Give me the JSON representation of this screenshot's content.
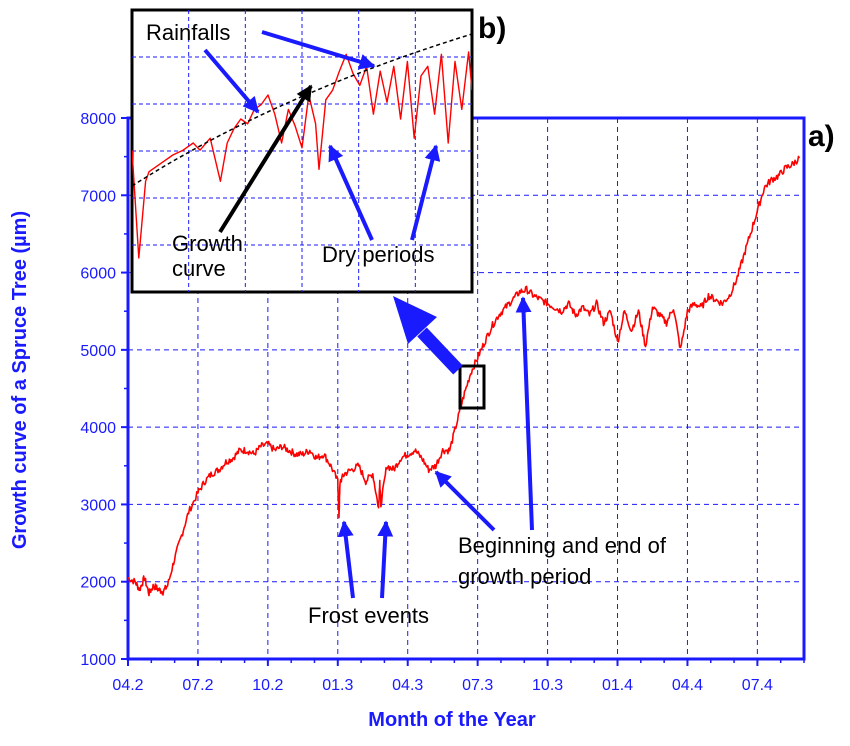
{
  "chart_data": [
    {
      "panel_label": "a)",
      "type": "line",
      "xlabel": "Month of the Year",
      "ylabel": "Growth curve of a Spruce Tree (µm)",
      "x_tick_labels": [
        "04.2",
        "07.2",
        "10.2",
        "01.3",
        "04.3",
        "07.3",
        "10.3",
        "01.4",
        "04.4",
        "07.4"
      ],
      "x_tick_months": [
        0,
        3,
        6,
        9,
        12,
        15,
        18,
        21,
        24,
        27
      ],
      "xlim": [
        0,
        29
      ],
      "yticks": [
        1000,
        2000,
        3000,
        4000,
        5000,
        6000,
        7000,
        8000
      ],
      "ylim": [
        1000,
        8000
      ],
      "grid": true,
      "series_color": "#ff0000",
      "series": [
        {
          "x": [
            0.0,
            0.3,
            0.5,
            0.7,
            0.9,
            1.1,
            1.3,
            1.5,
            1.7,
            2.0,
            2.3,
            2.6,
            3.0,
            3.3,
            3.6,
            3.9,
            4.2,
            4.5,
            4.8,
            5.1,
            5.4,
            5.7,
            6.0,
            6.3,
            6.6,
            6.9,
            7.2,
            7.5,
            7.8,
            8.1,
            8.4,
            8.7,
            9.0,
            9.05,
            9.1,
            9.3,
            9.6,
            9.9,
            10.2,
            10.5,
            10.75,
            10.8,
            10.85,
            11.1,
            11.4,
            11.7,
            12.0,
            12.3,
            12.6,
            12.9,
            13.2,
            13.5,
            13.8,
            14.1,
            14.4,
            14.7,
            15.0,
            15.3,
            15.6,
            15.9,
            16.2,
            16.5,
            16.8,
            17.1,
            17.4,
            17.7,
            18.0,
            18.3,
            18.6,
            18.9,
            19.2,
            19.5,
            19.8,
            20.1,
            20.4,
            20.7,
            21.0,
            21.3,
            21.6,
            21.9,
            22.2,
            22.5,
            22.8,
            23.1,
            23.4,
            23.7,
            24.0,
            24.3,
            24.6,
            24.9,
            25.2,
            25.5,
            25.8,
            26.1,
            26.4,
            26.7,
            27.0,
            27.3,
            27.6,
            27.9,
            28.2,
            28.5,
            28.8
          ],
          "y": [
            2050,
            2000,
            1900,
            2050,
            1850,
            1950,
            1900,
            1870,
            1950,
            2300,
            2600,
            2900,
            3150,
            3300,
            3400,
            3450,
            3550,
            3600,
            3700,
            3700,
            3650,
            3750,
            3780,
            3700,
            3750,
            3700,
            3650,
            3650,
            3700,
            3600,
            3650,
            3500,
            3300,
            2850,
            3300,
            3400,
            3450,
            3500,
            3300,
            3400,
            2950,
            3300,
            3000,
            3500,
            3450,
            3600,
            3650,
            3700,
            3600,
            3450,
            3500,
            3700,
            3700,
            4050,
            4400,
            4700,
            4900,
            5100,
            5300,
            5450,
            5550,
            5650,
            5750,
            5780,
            5700,
            5650,
            5600,
            5550,
            5500,
            5600,
            5450,
            5550,
            5450,
            5600,
            5350,
            5500,
            5100,
            5500,
            5250,
            5500,
            5050,
            5550,
            5450,
            5350,
            5550,
            5000,
            5500,
            5600,
            5550,
            5700,
            5650,
            5600,
            5700,
            5900,
            6200,
            6500,
            6800,
            7100,
            7200,
            7250,
            7350,
            7400,
            7480
          ]
        }
      ],
      "annotations": [
        "Frost events",
        "Beginning and end of growth period"
      ]
    },
    {
      "panel_label": "b)",
      "type": "line",
      "series_color": "#ff0000",
      "envelope_color": "#000000",
      "series": [
        {
          "x": [
            0,
            0.02,
            0.04,
            0.05,
            0.07,
            0.09,
            0.12,
            0.15,
            0.18,
            0.2,
            0.23,
            0.26,
            0.28,
            0.3,
            0.32,
            0.34,
            0.36,
            0.38,
            0.4,
            0.42,
            0.44,
            0.46,
            0.48,
            0.5,
            0.52,
            0.54,
            0.55,
            0.57,
            0.59,
            0.61,
            0.63,
            0.65,
            0.67,
            0.69,
            0.71,
            0.73,
            0.75,
            0.77,
            0.79,
            0.81,
            0.83,
            0.85,
            0.87,
            0.89,
            0.91,
            0.93,
            0.95,
            0.97,
            0.99,
            1.0
          ],
          "y": [
            0.55,
            0.1,
            0.42,
            0.46,
            0.48,
            0.5,
            0.53,
            0.55,
            0.58,
            0.55,
            0.6,
            0.42,
            0.58,
            0.64,
            0.68,
            0.66,
            0.72,
            0.74,
            0.78,
            0.7,
            0.58,
            0.72,
            0.65,
            0.56,
            0.78,
            0.66,
            0.47,
            0.76,
            0.8,
            0.88,
            0.95,
            0.87,
            0.82,
            0.9,
            0.7,
            0.88,
            0.75,
            0.9,
            0.68,
            0.92,
            0.6,
            0.86,
            0.9,
            0.7,
            0.95,
            0.58,
            0.92,
            0.72,
            0.96,
            0.8
          ]
        }
      ],
      "annotations": [
        "Rainfalls",
        "Growth curve",
        "Dry periods"
      ]
    }
  ]
}
